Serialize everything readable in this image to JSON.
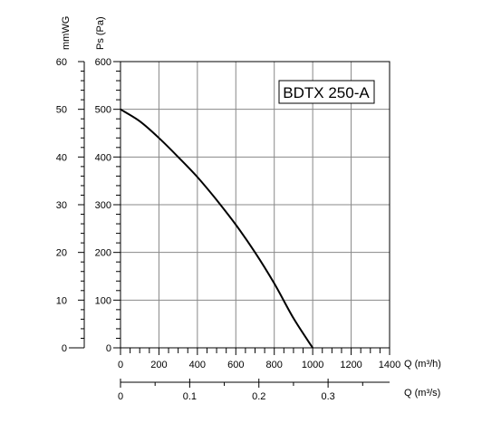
{
  "chart_data": {
    "type": "line",
    "model_label": "BDTX 250-A",
    "axes": {
      "x_primary": {
        "label": "Q (m³/h)",
        "range": [
          0,
          1400
        ],
        "ticks": [
          "0",
          "200",
          "400",
          "600",
          "800",
          "1000",
          "1200",
          "1400"
        ]
      },
      "x_secondary": {
        "label": "Q (m³/s)",
        "ticks": [
          {
            "value": 0,
            "label": "0"
          },
          {
            "value": 0.1,
            "label": "0.1"
          },
          {
            "value": 0.2,
            "label": "0.2"
          },
          {
            "value": 0.3,
            "label": "0.3"
          }
        ]
      },
      "y_primary": {
        "label": "Ps (Pa)",
        "range": [
          0,
          600
        ],
        "ticks": [
          "0",
          "100",
          "200",
          "300",
          "400",
          "500",
          "600"
        ]
      },
      "y_secondary": {
        "label": "mmWG",
        "range": [
          0,
          60
        ],
        "ticks": [
          "0",
          "10",
          "20",
          "30",
          "40",
          "50",
          "60"
        ]
      }
    },
    "grid": true,
    "series": [
      {
        "x": [
          0,
          100,
          200,
          300,
          400,
          500,
          600,
          700,
          800,
          900,
          1000
        ],
        "y": [
          500,
          475,
          440,
          400,
          358,
          310,
          258,
          200,
          135,
          62,
          0
        ]
      }
    ]
  }
}
